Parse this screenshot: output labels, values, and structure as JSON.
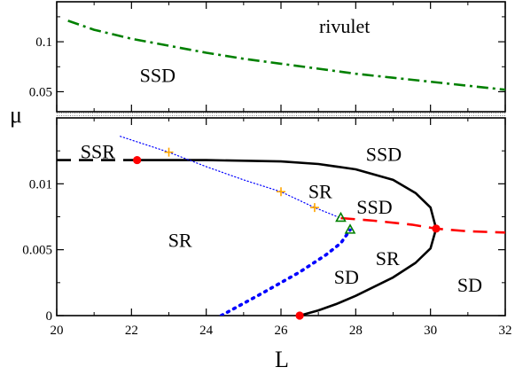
{
  "chart_data": [
    {
      "panel": "top",
      "type": "line",
      "xlim": [
        20,
        32
      ],
      "ylim": [
        0.03,
        0.14
      ],
      "yticks": [
        0.05,
        0.1
      ],
      "ytick_labels": [
        "0.05",
        "0.1"
      ],
      "grid": false,
      "series": [
        {
          "style": "dash-dot",
          "color": "#008000",
          "x": [
            20.3,
            21,
            22,
            23,
            24,
            25,
            26,
            27,
            28,
            29,
            30,
            31,
            32
          ],
          "y": [
            0.121,
            0.112,
            0.103,
            0.096,
            0.089,
            0.083,
            0.078,
            0.073,
            0.068,
            0.064,
            0.06,
            0.056,
            0.052
          ]
        }
      ],
      "annotations": [
        {
          "text": "rivulet",
          "x": 27.7,
          "y": 0.115
        },
        {
          "text": "SSD",
          "x": 22.7,
          "y": 0.066
        }
      ]
    },
    {
      "panel": "bottom",
      "type": "line",
      "xlim": [
        20,
        32
      ],
      "ylim": [
        0,
        0.015
      ],
      "xticks": [
        20,
        22,
        24,
        26,
        28,
        30,
        32
      ],
      "xtick_labels": [
        "20",
        "22",
        "24",
        "26",
        "28",
        "30",
        "32"
      ],
      "yticks": [
        0,
        0.005,
        0.01
      ],
      "ytick_labels": [
        "0",
        "0.005",
        "0.01"
      ],
      "xlabel": "L",
      "ylabel": "μ",
      "grid": false,
      "series": [
        {
          "style": "dashed",
          "color": "#000000",
          "x": [
            20,
            22.15
          ],
          "y": [
            0.0118,
            0.0118
          ]
        },
        {
          "style": "solid",
          "color": "#000000",
          "x": [
            22.15,
            24,
            26,
            27,
            28,
            29,
            29.6,
            30.0,
            30.15,
            30.0,
            29.6,
            29,
            28.5,
            28,
            27.5,
            27,
            26.5
          ],
          "y": [
            0.0118,
            0.0118,
            0.0117,
            0.0115,
            0.0111,
            0.0103,
            0.0093,
            0.0082,
            0.0066,
            0.0051,
            0.004,
            0.0029,
            0.0022,
            0.0015,
            0.0009,
            0.0004,
            0.0
          ]
        },
        {
          "style": "dashed",
          "color": "#ff0000",
          "x": [
            27.6,
            28.5,
            29.5,
            30.15,
            31,
            32
          ],
          "y": [
            0.0074,
            0.0072,
            0.0069,
            0.0066,
            0.0064,
            0.0063
          ]
        },
        {
          "style": "dotted",
          "color": "#0000ff",
          "thick": false,
          "x": [
            21.7,
            23.0,
            24.0,
            25.0,
            26.0,
            26.9,
            27.6
          ],
          "y": [
            0.0136,
            0.0124,
            0.0113,
            0.0103,
            0.0094,
            0.0082,
            0.0074
          ]
        },
        {
          "style": "dotted",
          "color": "#0000ff",
          "thick": true,
          "x": [
            24.4,
            25.5,
            26.5,
            27.2,
            27.6,
            27.85
          ],
          "y": [
            0.0,
            0.0017,
            0.0033,
            0.0046,
            0.0055,
            0.0065
          ]
        }
      ],
      "markers": [
        {
          "shape": "circle",
          "color": "#ff0000",
          "x": 22.15,
          "y": 0.0118
        },
        {
          "shape": "circle",
          "color": "#ff0000",
          "x": 30.15,
          "y": 0.0066
        },
        {
          "shape": "circle",
          "color": "#ff0000",
          "x": 26.5,
          "y": 0.0
        },
        {
          "shape": "plus",
          "color": "#ffa500",
          "x": 23.0,
          "y": 0.0124
        },
        {
          "shape": "plus",
          "color": "#ffa500",
          "x": 26.0,
          "y": 0.0094
        },
        {
          "shape": "plus",
          "color": "#ffa500",
          "x": 26.9,
          "y": 0.0082
        },
        {
          "shape": "triangle",
          "color": "#008000",
          "x": 27.6,
          "y": 0.0074
        },
        {
          "shape": "triangle",
          "color": "#008000",
          "x": 27.85,
          "y": 0.0065
        }
      ],
      "annotations": [
        {
          "text": "SSR",
          "x": 21.1,
          "y": 0.0124
        },
        {
          "text": "SSD",
          "x": 28.75,
          "y": 0.0122
        },
        {
          "text": "SR",
          "x": 27.05,
          "y": 0.0094
        },
        {
          "text": "SSD",
          "x": 28.5,
          "y": 0.0082
        },
        {
          "text": "SR",
          "x": 23.3,
          "y": 0.0057
        },
        {
          "text": "SR",
          "x": 28.85,
          "y": 0.0043
        },
        {
          "text": "SD",
          "x": 27.75,
          "y": 0.0029
        },
        {
          "text": "SD",
          "x": 31.05,
          "y": 0.0023
        }
      ]
    }
  ]
}
